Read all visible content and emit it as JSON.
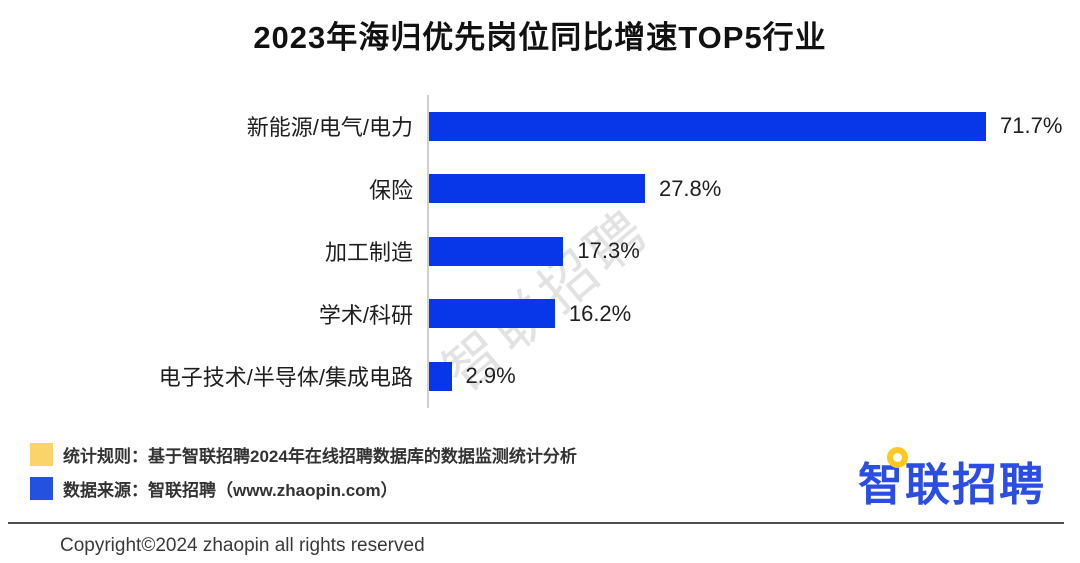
{
  "title": "2023年海归优先岗位同比增速TOP5行业",
  "chart_data": {
    "type": "bar",
    "orientation": "horizontal",
    "title": "2023年海归优先岗位同比增速TOP5行业",
    "categories": [
      "新能源/电气/电力",
      "保险",
      "加工制造",
      "学术/科研",
      "电子技术/半导体/集成电路"
    ],
    "values": [
      71.7,
      27.8,
      17.3,
      16.2,
      2.9
    ],
    "value_labels": [
      "71.7%",
      "27.8%",
      "17.3%",
      "16.2%",
      "2.9%"
    ],
    "unit": "%",
    "bar_color": "#0837e9",
    "axis_color": "#cfcfcf",
    "xlim": [
      0,
      75
    ],
    "grid": false,
    "legend_position": "none",
    "value_label_position": "outside-right"
  },
  "watermark": {
    "text": "智联招聘"
  },
  "legend": {
    "items": [
      {
        "color": "#fbd36b",
        "text": "统计规则：基于智联招聘2024年在线招聘数据库的数据监测统计分析"
      },
      {
        "color": "#2451e0",
        "text": "数据来源：智联招聘（www.zhaopin.com）"
      }
    ]
  },
  "logo": {
    "text": "智联招聘",
    "text_color": "#2a4de3",
    "pin_color": "#fec81e"
  },
  "footer": {
    "copyright": "Copyright©2024 zhaopin all rights reserved"
  }
}
